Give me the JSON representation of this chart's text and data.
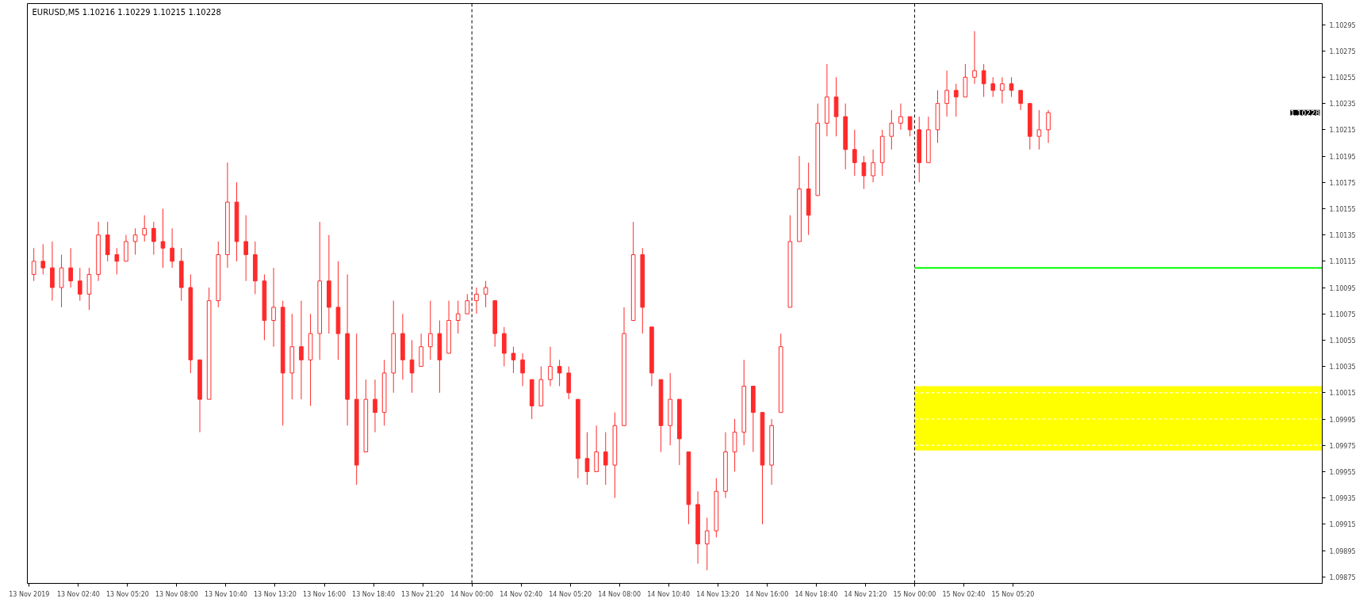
{
  "chart_data": {
    "type": "candlestick",
    "title": "EURUSD,M5  1.10216 1.10229 1.10215 1.10228",
    "color": "#ff2a2a",
    "x": [
      "2019-11-13T00:15",
      "2019-11-13T00:45",
      "2019-11-13T01:15",
      "2019-11-13T01:45",
      "2019-11-13T02:15",
      "2019-11-13T02:45",
      "2019-11-13T03:15",
      "2019-11-13T03:45",
      "2019-11-13T04:15",
      "2019-11-13T04:45",
      "2019-11-13T05:15",
      "2019-11-13T05:45",
      "2019-11-13T06:15",
      "2019-11-13T06:45",
      "2019-11-13T07:15",
      "2019-11-13T07:45",
      "2019-11-13T08:15",
      "2019-11-13T08:45",
      "2019-11-13T09:15",
      "2019-11-13T09:45",
      "2019-11-13T10:15",
      "2019-11-13T10:45",
      "2019-11-13T11:15",
      "2019-11-13T11:45",
      "2019-11-13T12:15",
      "2019-11-13T12:45",
      "2019-11-13T13:15",
      "2019-11-13T13:45",
      "2019-11-13T14:15",
      "2019-11-13T14:45",
      "2019-11-13T15:15",
      "2019-11-13T15:45",
      "2019-11-13T16:15",
      "2019-11-13T16:45",
      "2019-11-13T17:15",
      "2019-11-13T17:45",
      "2019-11-13T18:15",
      "2019-11-13T18:45",
      "2019-11-13T19:15",
      "2019-11-13T19:45",
      "2019-11-13T20:15",
      "2019-11-13T20:45",
      "2019-11-13T21:15",
      "2019-11-13T21:45",
      "2019-11-13T22:15",
      "2019-11-13T22:45",
      "2019-11-13T23:15",
      "2019-11-13T23:45",
      "2019-11-14T00:15",
      "2019-11-14T00:45",
      "2019-11-14T01:15",
      "2019-11-14T01:45",
      "2019-11-14T02:15",
      "2019-11-14T02:45",
      "2019-11-14T03:15",
      "2019-11-14T03:45",
      "2019-11-14T04:15",
      "2019-11-14T04:45",
      "2019-11-14T05:15",
      "2019-11-14T05:45",
      "2019-11-14T06:15",
      "2019-11-14T06:45",
      "2019-11-14T07:15",
      "2019-11-14T07:45",
      "2019-11-14T08:15",
      "2019-11-14T08:45",
      "2019-11-14T09:15",
      "2019-11-14T09:45",
      "2019-11-14T10:15",
      "2019-11-14T10:45",
      "2019-11-14T11:15",
      "2019-11-14T11:45",
      "2019-11-14T12:15",
      "2019-11-14T12:45",
      "2019-11-14T13:15",
      "2019-11-14T13:45",
      "2019-11-14T14:15",
      "2019-11-14T14:45",
      "2019-11-14T15:15",
      "2019-11-14T15:45",
      "2019-11-14T16:15",
      "2019-11-14T16:45",
      "2019-11-14T17:15",
      "2019-11-14T17:45",
      "2019-11-14T18:15",
      "2019-11-14T18:45",
      "2019-11-14T19:15",
      "2019-11-14T19:45",
      "2019-11-14T20:15",
      "2019-11-14T20:45",
      "2019-11-14T21:15",
      "2019-11-14T21:45",
      "2019-11-14T22:15",
      "2019-11-14T22:45",
      "2019-11-14T23:15",
      "2019-11-14T23:45",
      "2019-11-15T00:15",
      "2019-11-15T00:45",
      "2019-11-15T01:15",
      "2019-11-15T01:45",
      "2019-11-15T02:15",
      "2019-11-15T02:45",
      "2019-11-15T03:15",
      "2019-11-15T03:45",
      "2019-11-15T04:15",
      "2019-11-15T04:45",
      "2019-11-15T05:15",
      "2019-11-15T05:45",
      "2019-11-15T06:15",
      "2019-11-15T06:45",
      "2019-11-15T07:15"
    ],
    "ohlc": [
      [
        1.10105,
        1.10125,
        1.101,
        1.10115
      ],
      [
        1.10115,
        1.10128,
        1.10105,
        1.1011
      ],
      [
        1.1011,
        1.1013,
        1.10085,
        1.10095
      ],
      [
        1.10095,
        1.1012,
        1.1008,
        1.1011
      ],
      [
        1.1011,
        1.10125,
        1.10095,
        1.101
      ],
      [
        1.101,
        1.1011,
        1.10085,
        1.1009
      ],
      [
        1.1009,
        1.1011,
        1.10078,
        1.10105
      ],
      [
        1.10105,
        1.10145,
        1.101,
        1.10135
      ],
      [
        1.10135,
        1.10145,
        1.10115,
        1.1012
      ],
      [
        1.1012,
        1.10125,
        1.10105,
        1.10115
      ],
      [
        1.10115,
        1.10135,
        1.10115,
        1.1013
      ],
      [
        1.1013,
        1.1014,
        1.1012,
        1.10135
      ],
      [
        1.10135,
        1.1015,
        1.1013,
        1.1014
      ],
      [
        1.1014,
        1.10145,
        1.1012,
        1.1013
      ],
      [
        1.1013,
        1.10155,
        1.1011,
        1.10125
      ],
      [
        1.10125,
        1.1014,
        1.1011,
        1.10115
      ],
      [
        1.10115,
        1.10125,
        1.10085,
        1.10095
      ],
      [
        1.10095,
        1.10105,
        1.1003,
        1.1004
      ],
      [
        1.1004,
        1.1004,
        1.09985,
        1.1001
      ],
      [
        1.1001,
        1.10095,
        1.1001,
        1.10085
      ],
      [
        1.10085,
        1.1013,
        1.1008,
        1.1012
      ],
      [
        1.1012,
        1.1019,
        1.1011,
        1.1016
      ],
      [
        1.1016,
        1.10175,
        1.10115,
        1.1013
      ],
      [
        1.1013,
        1.1015,
        1.101,
        1.1012
      ],
      [
        1.1012,
        1.1013,
        1.1009,
        1.101
      ],
      [
        1.101,
        1.10105,
        1.10055,
        1.1007
      ],
      [
        1.1007,
        1.1011,
        1.1005,
        1.1008
      ],
      [
        1.1008,
        1.10085,
        1.0999,
        1.1003
      ],
      [
        1.1003,
        1.10075,
        1.1001,
        1.1005
      ],
      [
        1.1005,
        1.10085,
        1.1001,
        1.1004
      ],
      [
        1.1004,
        1.10075,
        1.10005,
        1.1006
      ],
      [
        1.1006,
        1.10145,
        1.1004,
        1.101
      ],
      [
        1.101,
        1.10135,
        1.1006,
        1.1008
      ],
      [
        1.1008,
        1.10115,
        1.1004,
        1.1006
      ],
      [
        1.1006,
        1.10105,
        1.0999,
        1.1001
      ],
      [
        1.1001,
        1.1006,
        1.09945,
        1.0996
      ],
      [
        1.0997,
        1.10025,
        1.0997,
        1.1001
      ],
      [
        1.1001,
        1.10025,
        1.09985,
        1.1
      ],
      [
        1.1,
        1.1004,
        1.0999,
        1.1003
      ],
      [
        1.1003,
        1.10085,
        1.10015,
        1.1006
      ],
      [
        1.1006,
        1.10075,
        1.10025,
        1.1004
      ],
      [
        1.1004,
        1.10055,
        1.10015,
        1.1003
      ],
      [
        1.10035,
        1.1006,
        1.10035,
        1.1005
      ],
      [
        1.1005,
        1.10085,
        1.1004,
        1.1006
      ],
      [
        1.1006,
        1.1007,
        1.10015,
        1.1004
      ],
      [
        1.10045,
        1.10085,
        1.10045,
        1.1007
      ],
      [
        1.1007,
        1.10085,
        1.1006,
        1.10075
      ],
      [
        1.10075,
        1.1009,
        1.10075,
        1.10085
      ],
      [
        1.10085,
        1.10095,
        1.10075,
        1.1009
      ],
      [
        1.1009,
        1.101,
        1.1008,
        1.10095
      ],
      [
        1.10085,
        1.10085,
        1.1005,
        1.1006
      ],
      [
        1.1006,
        1.10065,
        1.10035,
        1.10045
      ],
      [
        1.10045,
        1.1005,
        1.1003,
        1.1004
      ],
      [
        1.1004,
        1.10045,
        1.1002,
        1.1003
      ],
      [
        1.10025,
        1.10025,
        1.09995,
        1.10005
      ],
      [
        1.10005,
        1.10035,
        1.10005,
        1.10025
      ],
      [
        1.10025,
        1.1005,
        1.1002,
        1.10035
      ],
      [
        1.10035,
        1.1004,
        1.1002,
        1.1003
      ],
      [
        1.1003,
        1.10035,
        1.1001,
        1.10015
      ],
      [
        1.1001,
        1.1001,
        1.0995,
        1.09965
      ],
      [
        1.09965,
        1.09985,
        1.09945,
        1.09955
      ],
      [
        1.09955,
        1.0999,
        1.09955,
        1.0997
      ],
      [
        1.0997,
        1.09985,
        1.09945,
        1.0996
      ],
      [
        1.0996,
        1.1,
        1.09935,
        1.0999
      ],
      [
        1.0999,
        1.1008,
        1.0999,
        1.1006
      ],
      [
        1.1007,
        1.10145,
        1.1007,
        1.1012
      ],
      [
        1.1012,
        1.10125,
        1.1006,
        1.1008
      ],
      [
        1.10065,
        1.10065,
        1.1002,
        1.1003
      ],
      [
        1.10025,
        1.10025,
        1.0997,
        1.0999
      ],
      [
        1.0999,
        1.1003,
        1.09975,
        1.1001
      ],
      [
        1.1001,
        1.1001,
        1.0996,
        1.0998
      ],
      [
        1.0997,
        1.0997,
        1.09915,
        1.0993
      ],
      [
        1.0993,
        1.0994,
        1.09885,
        1.099
      ],
      [
        1.099,
        1.0992,
        1.0988,
        1.0991
      ],
      [
        1.0991,
        1.0995,
        1.09905,
        1.0994
      ],
      [
        1.0994,
        1.09985,
        1.09935,
        1.0997
      ],
      [
        1.0997,
        1.09995,
        1.09955,
        1.09985
      ],
      [
        1.09985,
        1.1004,
        1.09975,
        1.1002
      ],
      [
        1.1002,
        1.1002,
        1.0997,
        1.1
      ],
      [
        1.1,
        1.1,
        1.09915,
        1.0996
      ],
      [
        1.0996,
        1.09995,
        1.09945,
        1.0999
      ],
      [
        1.1,
        1.1006,
        1.1,
        1.1005
      ],
      [
        1.1008,
        1.1015,
        1.1008,
        1.1013
      ],
      [
        1.1013,
        1.10195,
        1.1013,
        1.1017
      ],
      [
        1.1017,
        1.1019,
        1.10135,
        1.1015
      ],
      [
        1.10165,
        1.10235,
        1.10165,
        1.1022
      ],
      [
        1.1022,
        1.10265,
        1.1021,
        1.1024
      ],
      [
        1.1024,
        1.10255,
        1.1021,
        1.10225
      ],
      [
        1.10225,
        1.10235,
        1.10185,
        1.102
      ],
      [
        1.102,
        1.10215,
        1.1018,
        1.1019
      ],
      [
        1.1019,
        1.10195,
        1.1017,
        1.1018
      ],
      [
        1.1018,
        1.102,
        1.10175,
        1.1019
      ],
      [
        1.1019,
        1.10215,
        1.1018,
        1.1021
      ],
      [
        1.1021,
        1.1023,
        1.102,
        1.1022
      ],
      [
        1.1022,
        1.10235,
        1.10215,
        1.10225
      ],
      [
        1.10225,
        1.10225,
        1.1021,
        1.10215
      ],
      [
        1.10215,
        1.10225,
        1.10175,
        1.1019
      ],
      [
        1.1019,
        1.10225,
        1.1019,
        1.10215
      ],
      [
        1.10215,
        1.10245,
        1.10205,
        1.10235
      ],
      [
        1.10235,
        1.1026,
        1.10225,
        1.10245
      ],
      [
        1.10245,
        1.1025,
        1.10225,
        1.1024
      ],
      [
        1.1024,
        1.10265,
        1.1024,
        1.10255
      ],
      [
        1.10255,
        1.1029,
        1.1025,
        1.1026
      ],
      [
        1.1026,
        1.10265,
        1.1024,
        1.1025
      ],
      [
        1.1025,
        1.10255,
        1.1024,
        1.10245
      ],
      [
        1.10245,
        1.10255,
        1.10235,
        1.1025
      ],
      [
        1.1025,
        1.10255,
        1.1024,
        1.10245
      ],
      [
        1.10245,
        1.10245,
        1.1023,
        1.10235
      ],
      [
        1.10235,
        1.10235,
        1.102,
        1.1021
      ],
      [
        1.1021,
        1.1023,
        1.102,
        1.10215
      ],
      [
        1.10215,
        1.1023,
        1.10205,
        1.10228
      ]
    ],
    "bands": [
      {
        "axis": "y",
        "from": 1.09971,
        "to": 1.1002,
        "color": "#ffff00"
      }
    ],
    "ref_lines": [
      {
        "axis": "x",
        "value": "2019-11-14T00:00",
        "color": "#000000",
        "line_style": "dashed"
      },
      {
        "axis": "x",
        "value": "2019-11-15T00:00",
        "color": "#000000",
        "line_style": "dashed"
      },
      {
        "axis": "y",
        "value": 1.10015,
        "color": "#ffffff",
        "line_style": "dashed"
      },
      {
        "axis": "y",
        "value": 1.09995,
        "color": "#ffffff",
        "line_style": "dashed"
      },
      {
        "axis": "y",
        "value": 1.09975,
        "color": "#ffffff",
        "line_style": "dashed"
      },
      {
        "axis": "y",
        "value": 1.1011,
        "color": "#00ff00",
        "line_style": "solid"
      }
    ],
    "annotations": [
      "1.10228"
    ],
    "xlim": [
      "2019-11-12T23:54",
      "2019-11-15T22:06"
    ],
    "ylim": [
      1.0987,
      1.10311
    ],
    "xticks": [
      {
        "value": "2019-11-13T00:00",
        "label": "13 Nov 2019"
      },
      {
        "value": "2019-11-13T02:40",
        "label": "13 Nov 02:40"
      },
      {
        "value": "2019-11-13T05:20",
        "label": "13 Nov 05:20"
      },
      {
        "value": "2019-11-13T08:00",
        "label": "13 Nov 08:00"
      },
      {
        "value": "2019-11-13T10:40",
        "label": "13 Nov 10:40"
      },
      {
        "value": "2019-11-13T13:20",
        "label": "13 Nov 13:20"
      },
      {
        "value": "2019-11-13T16:00",
        "label": "13 Nov 16:00"
      },
      {
        "value": "2019-11-13T18:40",
        "label": "13 Nov 18:40"
      },
      {
        "value": "2019-11-13T21:20",
        "label": "13 Nov 21:20"
      },
      {
        "value": "2019-11-14T00:00",
        "label": "14 Nov 00:00"
      },
      {
        "value": "2019-11-14T02:40",
        "label": "14 Nov 02:40"
      },
      {
        "value": "2019-11-14T05:20",
        "label": "14 Nov 05:20"
      },
      {
        "value": "2019-11-14T08:00",
        "label": "14 Nov 08:00"
      },
      {
        "value": "2019-11-14T10:40",
        "label": "14 Nov 10:40"
      },
      {
        "value": "2019-11-14T13:20",
        "label": "14 Nov 13:20"
      },
      {
        "value": "2019-11-14T16:00",
        "label": "14 Nov 16:00"
      },
      {
        "value": "2019-11-14T18:40",
        "label": "14 Nov 18:40"
      },
      {
        "value": "2019-11-14T21:20",
        "label": "14 Nov 21:20"
      },
      {
        "value": "2019-11-15T00:00",
        "label": "15 Nov 00:00"
      },
      {
        "value": "2019-11-15T02:40",
        "label": "15 Nov 02:40"
      },
      {
        "value": "2019-11-15T05:20",
        "label": "15 Nov 05:20"
      }
    ],
    "yticks": [
      1.09875,
      1.09895,
      1.09915,
      1.09935,
      1.09955,
      1.09975,
      1.09995,
      1.10015,
      1.10035,
      1.10055,
      1.10075,
      1.10095,
      1.10115,
      1.10135,
      1.10155,
      1.10175,
      1.10195,
      1.10215,
      1.10235,
      1.10255,
      1.10275,
      1.10295
    ],
    "grid": false
  }
}
